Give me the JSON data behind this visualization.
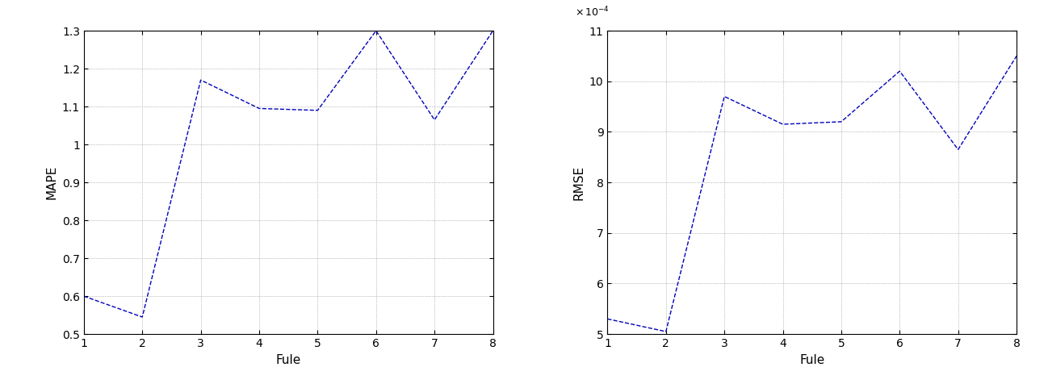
{
  "mape_x": [
    1,
    2,
    3,
    4,
    5,
    6,
    7,
    8
  ],
  "mape_y": [
    0.6,
    0.545,
    1.17,
    1.095,
    1.09,
    1.3,
    1.065,
    1.3
  ],
  "rmse_x": [
    1,
    2,
    3,
    4,
    5,
    6,
    7,
    8
  ],
  "rmse_y": [
    5.3,
    5.05,
    9.7,
    9.15,
    9.2,
    10.2,
    8.65,
    10.5
  ],
  "mape_ylabel": "MAPE",
  "rmse_ylabel": "RMSE",
  "xlabel": "Fule",
  "mape_ylim": [
    0.5,
    1.3
  ],
  "rmse_ylim": [
    5.0,
    11.0
  ],
  "xlim": [
    1,
    8
  ],
  "mape_yticks": [
    0.5,
    0.6,
    0.7,
    0.8,
    0.9,
    1.0,
    1.1,
    1.2,
    1.3
  ],
  "mape_yticklabels": [
    "0.5",
    "0.6",
    "0.7",
    "0.8",
    "0.9",
    "1",
    "1.1",
    "1.2",
    "1.3"
  ],
  "rmse_yticks": [
    5,
    6,
    7,
    8,
    9,
    10,
    11
  ],
  "rmse_yticklabels": [
    "5",
    "6",
    "7",
    "8",
    "9",
    "10",
    "11"
  ],
  "xticks": [
    1,
    2,
    3,
    4,
    5,
    6,
    7,
    8
  ],
  "xticklabels": [
    "1",
    "2",
    "3",
    "4",
    "5",
    "6",
    "7",
    "8"
  ],
  "line_color": "#0000BB",
  "line_style": "--",
  "line_width": 1.0,
  "rmse_scale_label": "x 10⁻⁴",
  "background_color": "#ffffff",
  "grid_color": "#888888",
  "grid_style": ":",
  "grid_linewidth": 0.5,
  "tick_fontsize": 10,
  "label_fontsize": 11
}
